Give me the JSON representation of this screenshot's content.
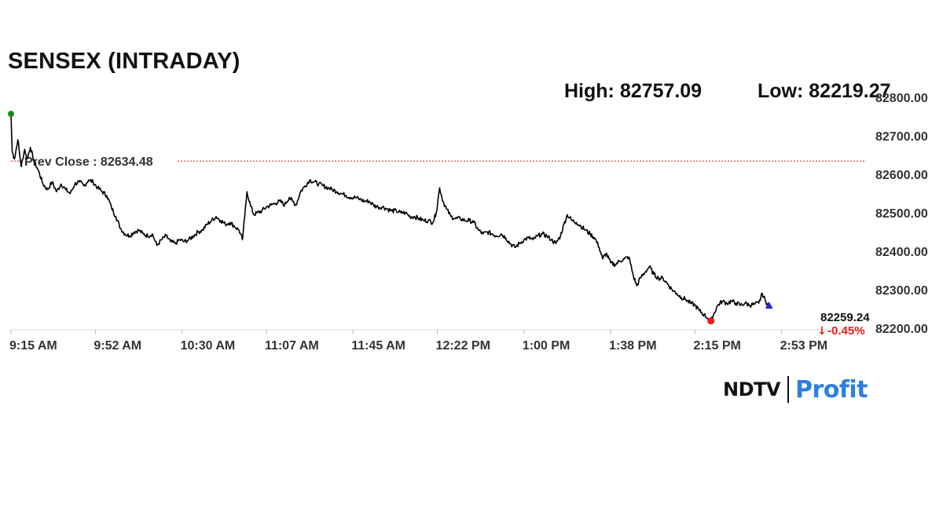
{
  "header": {
    "title": "SENSEX (INTRADAY)",
    "high_text": "High: 82757.09",
    "low_text": "Low: 82219.27"
  },
  "logo": {
    "brand": "NDTV",
    "sub": "Profit"
  },
  "chart_data": {
    "type": "line",
    "title": "SENSEX (INTRADAY)",
    "xlabel": "",
    "ylabel": "",
    "ylim": [
      82200,
      82800
    ],
    "y_ticks": [
      "82200.00",
      "82300.00",
      "82400.00",
      "82500.00",
      "82600.00",
      "82700.00",
      "82800.00"
    ],
    "x_ticks": [
      "9:15 AM",
      "9:52 AM",
      "10:30 AM",
      "11:07 AM",
      "11:45 AM",
      "12:22 PM",
      "1:00 PM",
      "1:38 PM",
      "2:15 PM",
      "2:53 PM"
    ],
    "x_tick_minutes": [
      555,
      592,
      630,
      667,
      705,
      742,
      780,
      818,
      855,
      893
    ],
    "x_range_minutes": [
      555,
      930
    ],
    "grid": false,
    "prev_close": {
      "label": "Prev Close : 82634.48",
      "value": 82634.48
    },
    "high": 82757.09,
    "low": 82219.27,
    "last": {
      "value_text": "82259.24",
      "change_text": "-0.45%",
      "value": 82259.24
    },
    "series": [
      {
        "points": [
          [
            555,
            82757
          ],
          [
            555.5,
            82660
          ],
          [
            556.5,
            82640
          ],
          [
            558,
            82690
          ],
          [
            559.5,
            82620
          ],
          [
            561,
            82665
          ],
          [
            562,
            82640
          ],
          [
            563.5,
            82670
          ],
          [
            565,
            82635
          ],
          [
            567,
            82610
          ],
          [
            569,
            82575
          ],
          [
            571,
            82560
          ],
          [
            573,
            82580
          ],
          [
            575,
            82555
          ],
          [
            577,
            82575
          ],
          [
            579,
            82560
          ],
          [
            581,
            82550
          ],
          [
            583,
            82575
          ],
          [
            585,
            82580
          ],
          [
            587,
            82570
          ],
          [
            589,
            82585
          ],
          [
            591,
            82580
          ],
          [
            593,
            82565
          ],
          [
            595,
            82555
          ],
          [
            597,
            82545
          ],
          [
            599,
            82515
          ],
          [
            601,
            82490
          ],
          [
            603,
            82460
          ],
          [
            605,
            82445
          ],
          [
            607,
            82440
          ],
          [
            609,
            82450
          ],
          [
            611,
            82455
          ],
          [
            613,
            82445
          ],
          [
            615,
            82440
          ],
          [
            617,
            82445
          ],
          [
            619,
            82415
          ],
          [
            621,
            82430
          ],
          [
            623,
            82440
          ],
          [
            625,
            82425
          ],
          [
            627,
            82420
          ],
          [
            629,
            82430
          ],
          [
            631,
            82425
          ],
          [
            633,
            82430
          ],
          [
            635,
            82440
          ],
          [
            637,
            82450
          ],
          [
            639,
            82455
          ],
          [
            641,
            82470
          ],
          [
            643,
            82480
          ],
          [
            645,
            82490
          ],
          [
            647,
            82480
          ],
          [
            649,
            82470
          ],
          [
            651,
            82475
          ],
          [
            653,
            82465
          ],
          [
            655,
            82455
          ],
          [
            656.5,
            82430
          ],
          [
            657.5,
            82490
          ],
          [
            658.5,
            82555
          ],
          [
            660,
            82520
          ],
          [
            661.5,
            82495
          ],
          [
            663,
            82500
          ],
          [
            665,
            82505
          ],
          [
            667,
            82515
          ],
          [
            669,
            82520
          ],
          [
            671,
            82525
          ],
          [
            673,
            82530
          ],
          [
            675,
            82520
          ],
          [
            677,
            82540
          ],
          [
            678.5,
            82530
          ],
          [
            680,
            82520
          ],
          [
            682,
            82555
          ],
          [
            684,
            82570
          ],
          [
            686,
            82585
          ],
          [
            688,
            82580
          ],
          [
            690,
            82575
          ],
          [
            692,
            82570
          ],
          [
            694,
            82565
          ],
          [
            696,
            82560
          ],
          [
            698,
            82555
          ],
          [
            700,
            82550
          ],
          [
            702,
            82545
          ],
          [
            704,
            82540
          ],
          [
            706,
            82540
          ],
          [
            708,
            82535
          ],
          [
            710,
            82530
          ],
          [
            712,
            82530
          ],
          [
            714,
            82520
          ],
          [
            716,
            82515
          ],
          [
            718,
            82515
          ],
          [
            720,
            82510
          ],
          [
            722,
            82505
          ],
          [
            724,
            82505
          ],
          [
            726,
            82500
          ],
          [
            728,
            82500
          ],
          [
            730,
            82490
          ],
          [
            732,
            82490
          ],
          [
            734,
            82485
          ],
          [
            736,
            82480
          ],
          [
            738,
            82480
          ],
          [
            740,
            82475
          ],
          [
            741.5,
            82500
          ],
          [
            743,
            82565
          ],
          [
            744.5,
            82530
          ],
          [
            746,
            82510
          ],
          [
            748,
            82490
          ],
          [
            750,
            82485
          ],
          [
            752,
            82485
          ],
          [
            754,
            82480
          ],
          [
            756,
            82480
          ],
          [
            758,
            82475
          ],
          [
            760,
            82455
          ],
          [
            762,
            82445
          ],
          [
            764,
            82450
          ],
          [
            766,
            82445
          ],
          [
            768,
            82440
          ],
          [
            770,
            82445
          ],
          [
            772,
            82435
          ],
          [
            774,
            82420
          ],
          [
            776,
            82410
          ],
          [
            778,
            82420
          ],
          [
            780,
            82430
          ],
          [
            782,
            82435
          ],
          [
            784,
            82430
          ],
          [
            786,
            82440
          ],
          [
            788,
            82445
          ],
          [
            790,
            82440
          ],
          [
            792,
            82430
          ],
          [
            794,
            82420
          ],
          [
            796,
            82440
          ],
          [
            797.5,
            82470
          ],
          [
            799,
            82495
          ],
          [
            801,
            82480
          ],
          [
            803,
            82475
          ],
          [
            805,
            82465
          ],
          [
            807,
            82455
          ],
          [
            809,
            82445
          ],
          [
            811,
            82435
          ],
          [
            813,
            82410
          ],
          [
            814.5,
            82380
          ],
          [
            816,
            82395
          ],
          [
            818,
            82370
          ],
          [
            820,
            82365
          ],
          [
            822,
            82375
          ],
          [
            824,
            82380
          ],
          [
            826,
            82385
          ],
          [
            828,
            82335
          ],
          [
            829.5,
            82310
          ],
          [
            831,
            82330
          ],
          [
            833,
            82345
          ],
          [
            835,
            82360
          ],
          [
            837,
            82340
          ],
          [
            839,
            82330
          ],
          [
            841,
            82330
          ],
          [
            843,
            82315
          ],
          [
            845,
            82300
          ],
          [
            847,
            82290
          ],
          [
            849,
            82280
          ],
          [
            851,
            82275
          ],
          [
            853,
            82265
          ],
          [
            855,
            82260
          ],
          [
            857,
            82245
          ],
          [
            859,
            82235
          ],
          [
            861,
            82225
          ],
          [
            862,
            82219
          ],
          [
            863.5,
            82240
          ],
          [
            865,
            82260
          ],
          [
            867,
            82270
          ],
          [
            869,
            82265
          ],
          [
            871,
            82270
          ],
          [
            873,
            82265
          ],
          [
            875,
            82260
          ],
          [
            877,
            82265
          ],
          [
            879,
            82260
          ],
          [
            881,
            82262
          ],
          [
            883,
            82265
          ],
          [
            884.5,
            82290
          ],
          [
            886,
            82270
          ],
          [
            887.5,
            82259
          ]
        ]
      }
    ]
  },
  "colors": {
    "line": "#000000",
    "prev_close_line": "#d02020",
    "high_marker": "#1a8a1a",
    "low_marker": "#e81c1c",
    "last_marker": "#2828c8",
    "change_text": "#e81c1c",
    "axis_text": "#333333"
  }
}
